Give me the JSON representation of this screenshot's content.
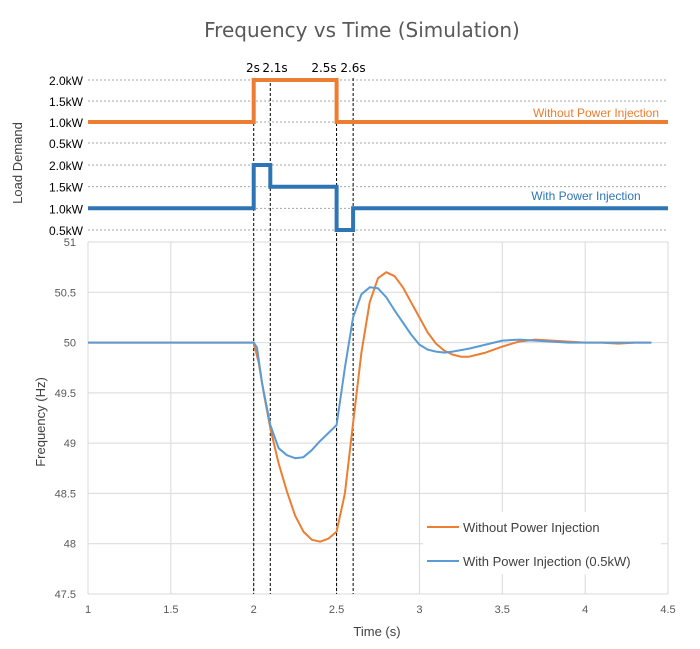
{
  "title": "Frequency vs Time (Simulation)",
  "colors": {
    "orange": "#ED7D31",
    "blue": "#2E75B6",
    "blue_light": "#5B9BD5",
    "grid": "#d9d9d9",
    "text": "#595959"
  },
  "load_panel": {
    "ylabel": "Load Demand",
    "event_labels": [
      "2s",
      "2.1s",
      "2.5s",
      "2.6s"
    ],
    "event_times": [
      2,
      2.1,
      2.5,
      2.6
    ],
    "without": {
      "label": "Without Power Injection",
      "ticks": [
        "2.0kW",
        "1.5kW",
        "1.0kW",
        "0.5kW"
      ],
      "x": [
        1,
        2,
        2,
        2.5,
        2.5,
        4.5
      ],
      "y": [
        1.0,
        1.0,
        2.0,
        2.0,
        1.0,
        1.0
      ]
    },
    "with": {
      "label": "With Power Injection",
      "ticks": [
        "2.0kW",
        "1.5kW",
        "1.0kW",
        "0.5kW"
      ],
      "x": [
        1,
        2,
        2,
        2.1,
        2.1,
        2.5,
        2.5,
        2.6,
        2.6,
        4.5
      ],
      "y": [
        1.0,
        1.0,
        2.0,
        2.0,
        1.5,
        1.5,
        0.5,
        0.5,
        1.0,
        1.0
      ]
    }
  },
  "chart_data": {
    "type": "line",
    "title": "Frequency vs Time (Simulation)",
    "xlabel": "Time (s)",
    "ylabel": "Frequency (Hz)",
    "xlim": [
      1,
      4.5
    ],
    "ylim": [
      47.5,
      51
    ],
    "xticks": [
      "1",
      "1.5",
      "2",
      "2.5",
      "3",
      "3.5",
      "4",
      "4.5"
    ],
    "yticks": [
      "47.5",
      "48",
      "48.5",
      "49",
      "49.5",
      "50",
      "50.5",
      "51"
    ],
    "grid": true,
    "legend": "bottom-right",
    "series": [
      {
        "name": "Without Power Injection",
        "color": "#ED7D31",
        "x": [
          1.0,
          2.0,
          2.03,
          2.06,
          2.1,
          2.15,
          2.2,
          2.25,
          2.3,
          2.35,
          2.4,
          2.45,
          2.5,
          2.55,
          2.6,
          2.65,
          2.7,
          2.75,
          2.8,
          2.85,
          2.9,
          2.95,
          3.0,
          3.05,
          3.1,
          3.15,
          3.2,
          3.25,
          3.3,
          3.35,
          3.4,
          3.5,
          3.6,
          3.7,
          3.8,
          3.9,
          4.0,
          4.1,
          4.2,
          4.3,
          4.4
        ],
        "y": [
          50.0,
          50.0,
          49.8,
          49.5,
          49.15,
          48.8,
          48.52,
          48.28,
          48.12,
          48.04,
          48.02,
          48.05,
          48.12,
          48.5,
          49.2,
          49.9,
          50.4,
          50.64,
          50.7,
          50.66,
          50.55,
          50.4,
          50.25,
          50.1,
          49.99,
          49.92,
          49.88,
          49.86,
          49.86,
          49.88,
          49.9,
          49.96,
          50.01,
          50.03,
          50.02,
          50.01,
          50.0,
          50.0,
          49.99,
          50.0,
          50.0
        ]
      },
      {
        "name": "With Power Injection (0.5kW)",
        "color": "#5B9BD5",
        "x": [
          1.0,
          2.0,
          2.02,
          2.05,
          2.1,
          2.15,
          2.2,
          2.25,
          2.3,
          2.35,
          2.4,
          2.45,
          2.5,
          2.55,
          2.6,
          2.65,
          2.7,
          2.75,
          2.8,
          2.85,
          2.9,
          2.95,
          3.0,
          3.05,
          3.1,
          3.15,
          3.2,
          3.3,
          3.4,
          3.5,
          3.6,
          3.7,
          3.8,
          3.9,
          4.0,
          4.1,
          4.2,
          4.3,
          4.4
        ],
        "y": [
          50.0,
          50.0,
          49.95,
          49.6,
          49.18,
          48.95,
          48.88,
          48.85,
          48.86,
          48.93,
          49.02,
          49.1,
          49.18,
          49.75,
          50.25,
          50.48,
          50.55,
          50.54,
          50.45,
          50.32,
          50.2,
          50.08,
          49.98,
          49.93,
          49.91,
          49.9,
          49.91,
          49.94,
          49.98,
          50.02,
          50.03,
          50.02,
          50.01,
          50.0,
          50.0,
          50.0,
          50.0,
          50.0,
          50.0
        ]
      }
    ]
  }
}
